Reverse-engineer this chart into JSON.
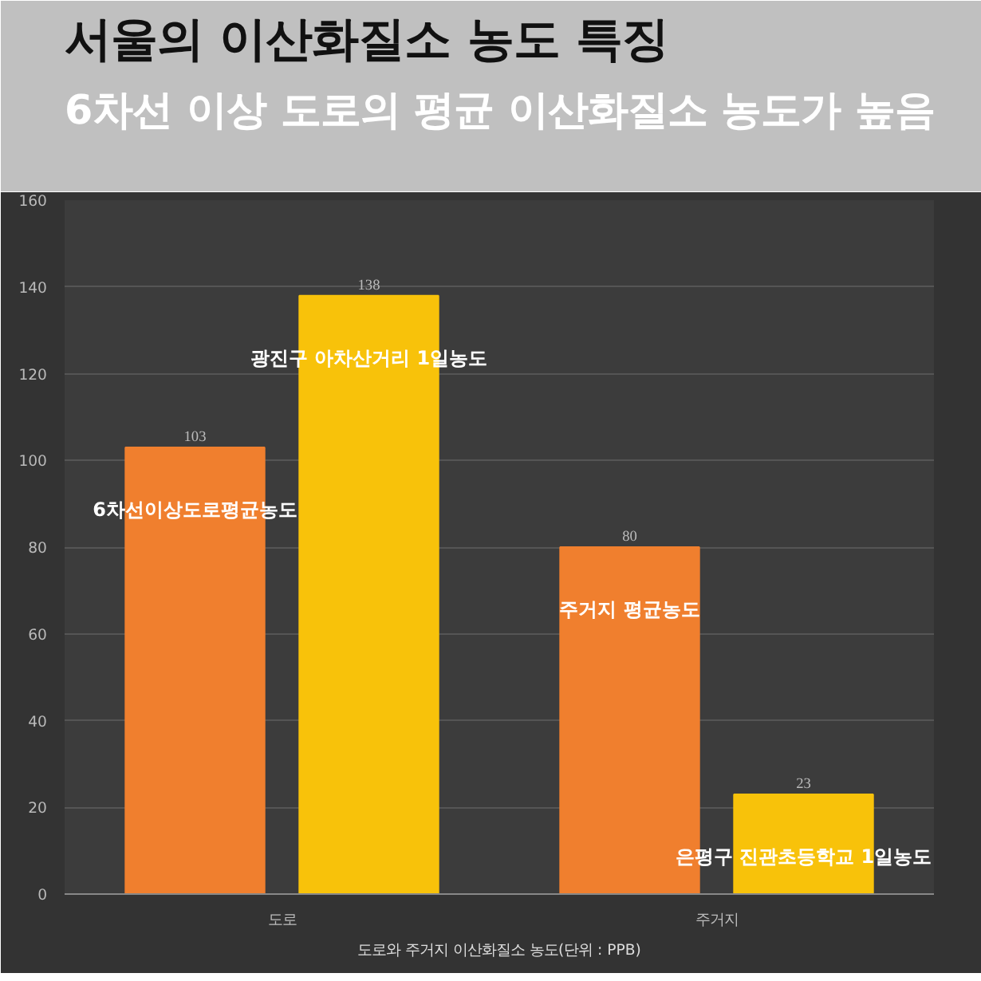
{
  "chart_data": {
    "type": "bar",
    "title": "서울의 이산화질소 농도 특징",
    "subtitle": "6차선 이상 도로의 평균 이산화질소 농도가 높음",
    "xlabel": "도로와 주거지 이산화질소 농도(단위 : PPB)",
    "categories": [
      "도로",
      "주거지"
    ],
    "series": [
      {
        "color": "#f07f2e",
        "values": [
          103,
          80
        ]
      },
      {
        "color": "#f8c20a",
        "values": [
          138,
          23
        ]
      }
    ],
    "ylim": [
      0,
      160
    ],
    "yticks": [
      0,
      20,
      40,
      60,
      80,
      100,
      120,
      140,
      160
    ],
    "grid": "y",
    "data_labels": true,
    "annotations": [
      "6차선이상도로평균농도",
      "광진구 아차산거리 1일농도",
      "주거지 평균농도",
      "은평구 진관초등학교 1일농도"
    ]
  }
}
